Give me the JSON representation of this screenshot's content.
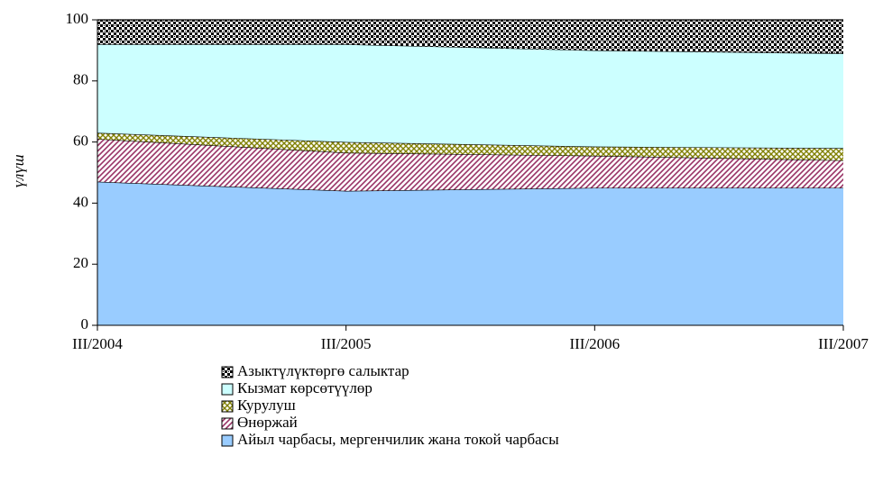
{
  "chart_data": {
    "type": "stacked-area",
    "categories": [
      "III/2004",
      "III/2005",
      "III/2006",
      "III/2007"
    ],
    "y_label": "үлүш",
    "ylim": [
      0,
      100
    ],
    "yticks": [
      0,
      20,
      40,
      60,
      80,
      100
    ],
    "series": [
      {
        "name": "Айыл чарбасы, мергенчилик жана токой чарбасы",
        "color": "#99ccff",
        "values": [
          47,
          44,
          45,
          45
        ]
      },
      {
        "name": "Өнөржай",
        "color": "#993366",
        "hatch": "diagonal",
        "values": [
          14,
          12.5,
          10.5,
          9
        ]
      },
      {
        "name": "Курулуш",
        "color": "#808000",
        "hatch": "cross",
        "values": [
          2,
          3.5,
          3,
          4
        ]
      },
      {
        "name": "Кызмат көрсөтүүлөр",
        "color": "#ccffff",
        "values": [
          29,
          32,
          31.5,
          31
        ]
      },
      {
        "name": "Азыктүлүктөргө салыктар",
        "color": "#000000",
        "hatch": "checker",
        "values": [
          8,
          8,
          10,
          11
        ]
      }
    ]
  }
}
